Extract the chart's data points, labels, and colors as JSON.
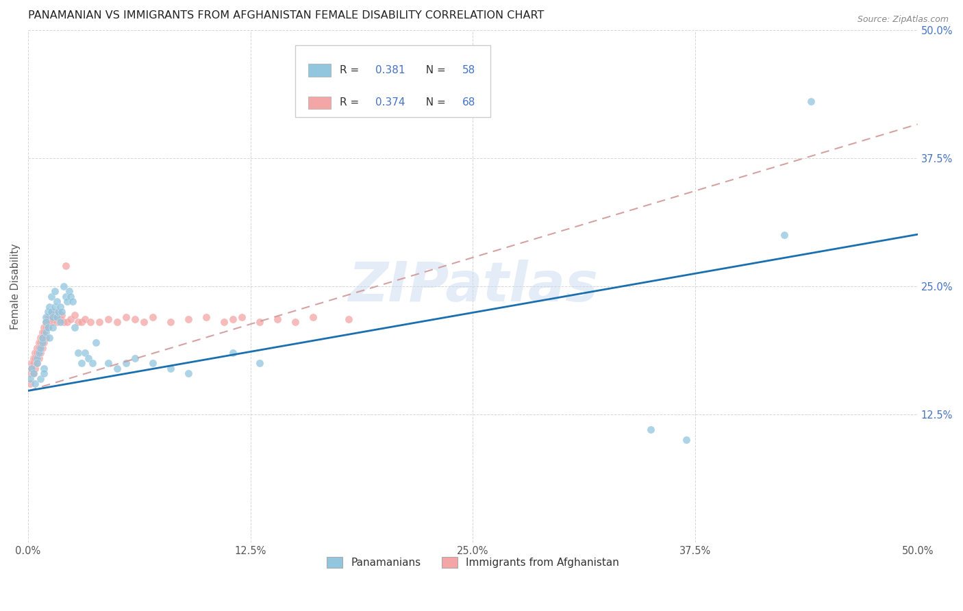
{
  "title": "PANAMANIAN VS IMMIGRANTS FROM AFGHANISTAN FEMALE DISABILITY CORRELATION CHART",
  "source": "Source: ZipAtlas.com",
  "ylabel": "Female Disability",
  "xlim": [
    0.0,
    0.5
  ],
  "ylim": [
    0.0,
    0.5
  ],
  "xtick_vals": [
    0.0,
    0.125,
    0.25,
    0.375,
    0.5
  ],
  "xtick_labels": [
    "0.0%",
    "12.5%",
    "25.0%",
    "37.5%",
    "50.0%"
  ],
  "ytick_vals": [
    0.125,
    0.25,
    0.375,
    0.5
  ],
  "ytick_labels": [
    "12.5%",
    "25.0%",
    "37.5%",
    "50.0%"
  ],
  "blue_color": "#92c5de",
  "pink_color": "#f4a5a5",
  "blue_line_color": "#1a6faf",
  "pink_line_color": "#d09898",
  "watermark": "ZIPatlas",
  "legend_label1": "Panamanians",
  "legend_label2": "Immigrants from Afghanistan",
  "pan_R": "0.381",
  "pan_N": "58",
  "afg_R": "0.374",
  "afg_N": "68",
  "pan_line_intercept": 0.148,
  "pan_line_slope": 0.305,
  "afg_line_intercept": 0.148,
  "afg_line_slope": 0.52,
  "panamanian_x": [
    0.001,
    0.002,
    0.003,
    0.004,
    0.005,
    0.005,
    0.006,
    0.007,
    0.007,
    0.008,
    0.008,
    0.009,
    0.009,
    0.01,
    0.01,
    0.01,
    0.011,
    0.011,
    0.012,
    0.012,
    0.013,
    0.013,
    0.014,
    0.014,
    0.015,
    0.015,
    0.016,
    0.016,
    0.017,
    0.018,
    0.018,
    0.019,
    0.02,
    0.021,
    0.022,
    0.023,
    0.024,
    0.025,
    0.026,
    0.028,
    0.03,
    0.032,
    0.034,
    0.036,
    0.038,
    0.045,
    0.05,
    0.055,
    0.06,
    0.07,
    0.08,
    0.09,
    0.115,
    0.13,
    0.35,
    0.37,
    0.425,
    0.44
  ],
  "panamanian_y": [
    0.16,
    0.17,
    0.165,
    0.155,
    0.18,
    0.175,
    0.185,
    0.19,
    0.16,
    0.195,
    0.2,
    0.17,
    0.165,
    0.22,
    0.215,
    0.205,
    0.225,
    0.21,
    0.23,
    0.2,
    0.24,
    0.225,
    0.22,
    0.21,
    0.245,
    0.23,
    0.235,
    0.22,
    0.225,
    0.23,
    0.215,
    0.225,
    0.25,
    0.24,
    0.235,
    0.245,
    0.24,
    0.235,
    0.21,
    0.185,
    0.175,
    0.185,
    0.18,
    0.175,
    0.195,
    0.175,
    0.17,
    0.175,
    0.18,
    0.175,
    0.17,
    0.165,
    0.185,
    0.175,
    0.11,
    0.1,
    0.3,
    0.43
  ],
  "afghanistan_x": [
    0.001,
    0.001,
    0.002,
    0.002,
    0.003,
    0.003,
    0.003,
    0.004,
    0.004,
    0.004,
    0.005,
    0.005,
    0.005,
    0.006,
    0.006,
    0.006,
    0.007,
    0.007,
    0.007,
    0.008,
    0.008,
    0.008,
    0.009,
    0.009,
    0.009,
    0.01,
    0.01,
    0.01,
    0.011,
    0.011,
    0.012,
    0.012,
    0.013,
    0.013,
    0.014,
    0.014,
    0.015,
    0.016,
    0.017,
    0.018,
    0.019,
    0.02,
    0.021,
    0.022,
    0.024,
    0.026,
    0.028,
    0.03,
    0.032,
    0.035,
    0.04,
    0.045,
    0.05,
    0.055,
    0.06,
    0.065,
    0.07,
    0.08,
    0.09,
    0.1,
    0.11,
    0.115,
    0.12,
    0.13,
    0.14,
    0.15,
    0.16,
    0.18
  ],
  "afghanistan_y": [
    0.165,
    0.155,
    0.175,
    0.17,
    0.18,
    0.175,
    0.165,
    0.185,
    0.18,
    0.17,
    0.19,
    0.185,
    0.175,
    0.195,
    0.19,
    0.18,
    0.2,
    0.195,
    0.185,
    0.205,
    0.2,
    0.19,
    0.21,
    0.205,
    0.195,
    0.215,
    0.21,
    0.2,
    0.22,
    0.21,
    0.22,
    0.215,
    0.22,
    0.215,
    0.225,
    0.218,
    0.222,
    0.215,
    0.225,
    0.218,
    0.222,
    0.215,
    0.27,
    0.215,
    0.218,
    0.222,
    0.215,
    0.215,
    0.218,
    0.215,
    0.215,
    0.218,
    0.215,
    0.22,
    0.218,
    0.215,
    0.22,
    0.215,
    0.218,
    0.22,
    0.215,
    0.218,
    0.22,
    0.215,
    0.218,
    0.215,
    0.22,
    0.218
  ]
}
